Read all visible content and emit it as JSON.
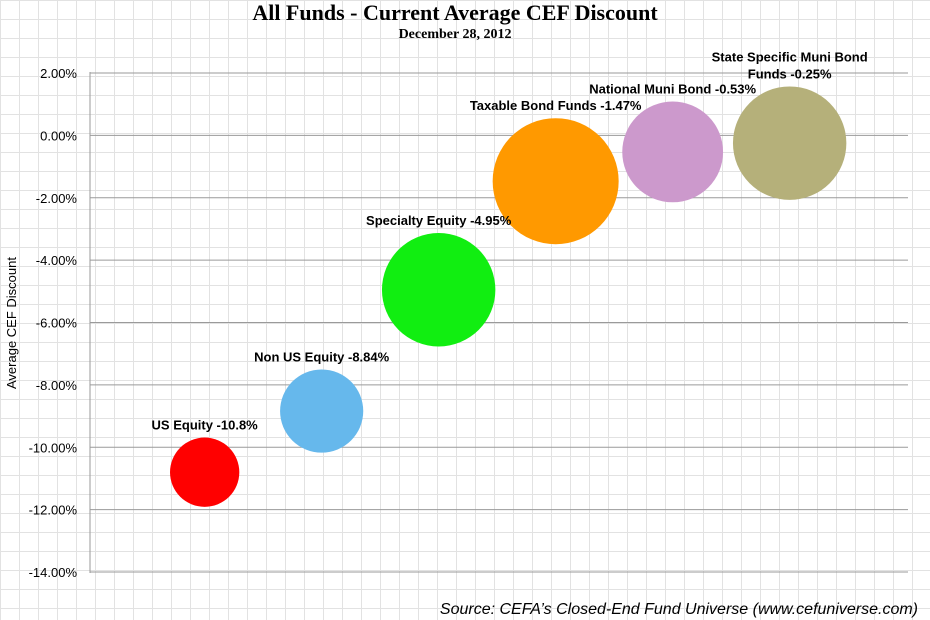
{
  "chart_data": {
    "type": "scatter",
    "title": "All Funds - Current Average CEF Discount",
    "subtitle": "December 28, 2012",
    "xlabel": "",
    "ylabel": "Average CEF Discount",
    "ylim": [
      -14,
      2
    ],
    "yticks": [
      "2.00%",
      "0.00%",
      "-2.00%",
      "-4.00%",
      "-6.00%",
      "-8.00%",
      "-10.00%",
      "-12.00%",
      "-14.00%"
    ],
    "grid": true,
    "source": "Source: CEFA’s Closed-End Fund Universe (www.cefuniverse.com)",
    "series": [
      {
        "name": "US Equity",
        "x": 1,
        "y": -10.8,
        "size": 0.55,
        "color": "#ff0000",
        "label": "US Equity -10.8%"
      },
      {
        "name": "Non US Equity",
        "x": 2,
        "y": -8.84,
        "size": 0.66,
        "color": "#66b8ec",
        "label": "Non US Equity -8.84%"
      },
      {
        "name": "Specialty Equity",
        "x": 3,
        "y": -4.95,
        "size": 0.9,
        "color": "#11ee11",
        "label": "Specialty Equity -4.95%"
      },
      {
        "name": "Taxable Bond Funds",
        "x": 4,
        "y": -1.47,
        "size": 1.0,
        "color": "#ff9900",
        "label": "Taxable Bond Funds -1.47%"
      },
      {
        "name": "National Muni Bond",
        "x": 5,
        "y": -0.53,
        "size": 0.8,
        "color": "#cc99cc",
        "label": "National Muni Bond -0.53%"
      },
      {
        "name": "State Specific Muni Bond Funds",
        "x": 6,
        "y": -0.25,
        "size": 0.9,
        "color": "#b5b07a",
        "label_lines": [
          "State Specific Muni Bond",
          "Funds -0.25%"
        ]
      }
    ]
  }
}
